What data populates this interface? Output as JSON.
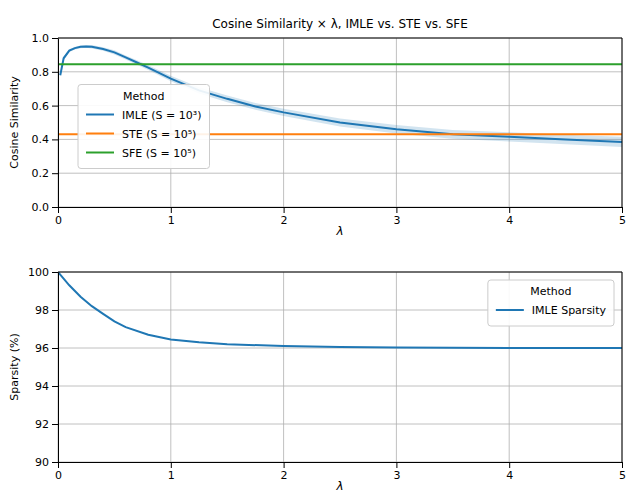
{
  "chart_data": [
    {
      "type": "line",
      "title": "Cosine Similarity × λ, IMLE vs. STE vs. SFE",
      "x_label": "λ",
      "y_label": "Cosine Similarity",
      "xlim": [
        0,
        5
      ],
      "xticks": [
        0,
        1,
        2,
        3,
        4,
        5
      ],
      "ylim": [
        0,
        1
      ],
      "yticks": [
        {
          "value": 0,
          "label": "0.0"
        },
        {
          "value": 0.2,
          "label": "0.2"
        },
        {
          "value": 0.4,
          "label": "0.4"
        },
        {
          "value": 0.6,
          "label": "0.6"
        },
        {
          "value": 0.8,
          "label": "0.8"
        },
        {
          "value": 1,
          "label": "1.0"
        }
      ],
      "grid": true,
      "legend": "center left",
      "legend_title": "Method",
      "series": [
        {
          "name": "IMLE (S = 10³)",
          "color": "#1f77b4",
          "x": [
            0.02,
            0.05,
            0.1,
            0.15,
            0.2,
            0.25,
            0.3,
            0.4,
            0.5,
            0.6,
            0.7,
            0.8,
            1.0,
            1.25,
            1.5,
            1.75,
            2.0,
            2.5,
            3.0,
            3.5,
            4.0,
            4.5,
            5.0
          ],
          "values": [
            0.78,
            0.88,
            0.925,
            0.94,
            0.948,
            0.95,
            0.948,
            0.935,
            0.915,
            0.885,
            0.855,
            0.825,
            0.76,
            0.69,
            0.64,
            0.595,
            0.56,
            0.5,
            0.46,
            0.43,
            0.415,
            0.4,
            0.385
          ],
          "error": [
            0.01,
            0.01,
            0.008,
            0.008,
            0.008,
            0.008,
            0.01,
            0.01,
            0.012,
            0.012,
            0.014,
            0.014,
            0.016,
            0.018,
            0.02,
            0.02,
            0.022,
            0.024,
            0.025,
            0.026,
            0.027,
            0.028,
            0.03
          ]
        },
        {
          "name": "STE (S = 10⁵)",
          "color": "#ff7f0e",
          "x": [
            0,
            5
          ],
          "values": [
            0.43,
            0.43
          ]
        },
        {
          "name": "SFE (S = 10⁵)",
          "color": "#2ca02c",
          "x": [
            0,
            5
          ],
          "values": [
            0.845,
            0.845
          ]
        }
      ]
    },
    {
      "type": "line",
      "x_label": "λ",
      "y_label": "Sparsity (%)",
      "xlim": [
        0,
        5
      ],
      "xticks": [
        0,
        1,
        2,
        3,
        4,
        5
      ],
      "ylim": [
        90,
        100
      ],
      "yticks": [
        90,
        92,
        94,
        96,
        98,
        100
      ],
      "grid": true,
      "legend": "upper right",
      "legend_title": "Method",
      "series": [
        {
          "name": "IMLE Sparsity",
          "color": "#1f77b4",
          "x": [
            0,
            0.1,
            0.2,
            0.3,
            0.4,
            0.5,
            0.6,
            0.8,
            1.0,
            1.25,
            1.5,
            2.0,
            2.5,
            3.0,
            4.0,
            5.0
          ],
          "values": [
            100,
            99.3,
            98.7,
            98.2,
            97.8,
            97.4,
            97.1,
            96.7,
            96.45,
            96.3,
            96.2,
            96.1,
            96.05,
            96.03,
            96.0,
            96.0
          ]
        }
      ]
    }
  ]
}
